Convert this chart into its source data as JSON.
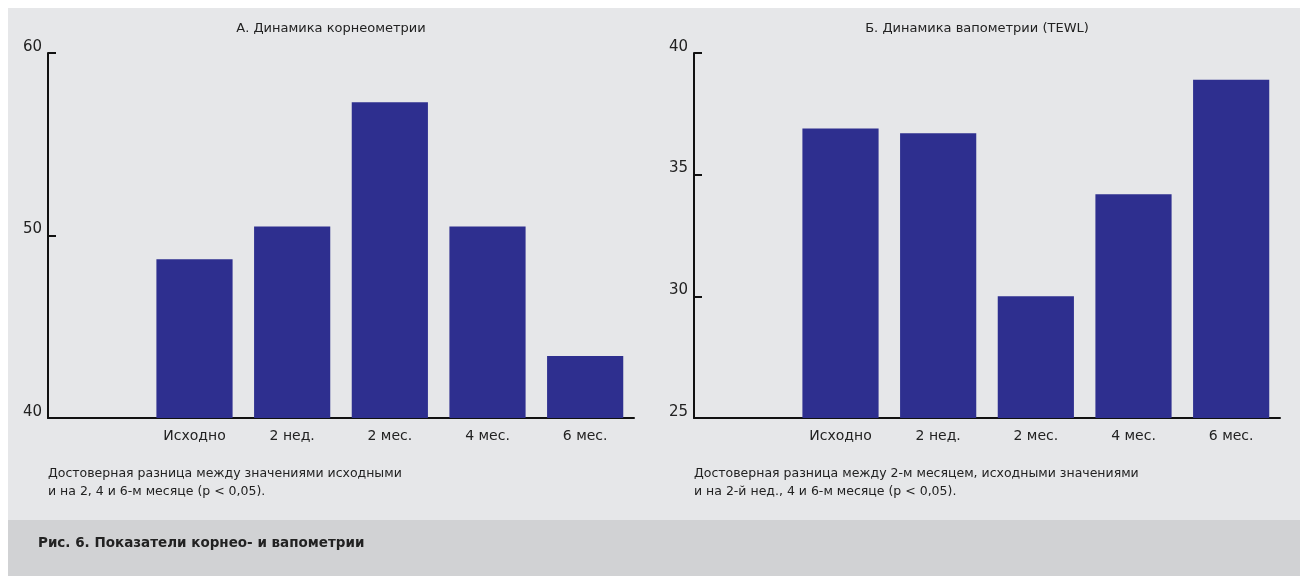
{
  "chart_data": [
    {
      "type": "bar",
      "title": "А. Динамика корнеометрии",
      "categories": [
        null,
        "Исходно",
        "2 нед.",
        "2 мес.",
        "4 мес.",
        "6 мес."
      ],
      "values": [
        null,
        48.7,
        50.5,
        57.3,
        50.5,
        43.4
      ],
      "color": "#2e2f8f",
      "ylim": [
        40,
        60
      ],
      "yticks": [
        40,
        50,
        60
      ],
      "grid": false,
      "annotations": [
        "Достоверная разница между значениями исходными\nи на 2, 4 и 6-м месяце (p < 0,05).",
        "Рис. 6. Показатели корнео- и вапометрии"
      ]
    },
    {
      "type": "bar",
      "title": "Б. Динамика вапометрии (TEWL)",
      "categories": [
        null,
        "Исходно",
        "2 нед.",
        "2 мес.",
        "4 мес.",
        "6 мес."
      ],
      "values": [
        null,
        36.9,
        36.7,
        30.0,
        34.2,
        38.9
      ],
      "color": "#2e2f8f",
      "ylim": [
        25,
        40
      ],
      "yticks": [
        25,
        30,
        35,
        40
      ],
      "grid": false,
      "annotations": [
        "Достоверная разница между 2-м месяцем, исходными значениями\nи на 2-й нед., 4 и 6-м месяце (p < 0,05)."
      ]
    }
  ]
}
